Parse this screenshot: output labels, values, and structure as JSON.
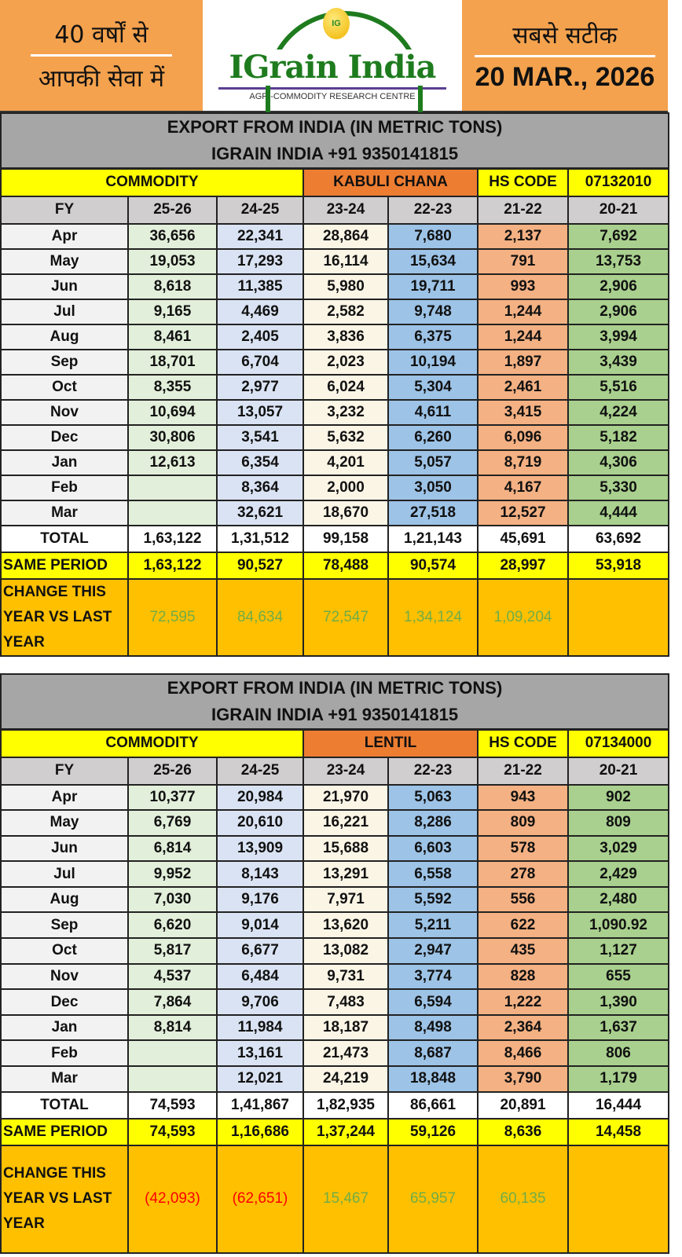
{
  "header": {
    "left_line1": "40 वर्षों से",
    "left_line2": "आपकी सेवा में",
    "logo_text": "IGrain India",
    "logo_coin": "IG",
    "tagline": "AGRI-COMMODITY RESEARCH CENTRE",
    "right_line1": "सबसे सटीक",
    "date": "20 MAR., 2026"
  },
  "colors": {
    "yellow": "#ffff00",
    "orange": "#ed7d31",
    "amber": "#ffc000",
    "positive": "#70ad47",
    "negative": "#ff0000"
  },
  "tables": [
    {
      "title1": "EXPORT FROM INDIA (IN METRIC TONS)",
      "title2": "IGRAIN INDIA +91 9350141815",
      "commodity_label": "COMMODITY",
      "commodity": "KABULI CHANA",
      "hs_label": "HS CODE",
      "hs_code": "07132010",
      "fy_label": "FY",
      "years": [
        "25-26",
        "24-25",
        "23-24",
        "22-23",
        "21-22",
        "20-21"
      ],
      "rows": [
        {
          "month": "Apr",
          "values": [
            "36,656",
            "22,341",
            "28,864",
            "7,680",
            "2,137",
            "7,692"
          ]
        },
        {
          "month": "May",
          "values": [
            "19,053",
            "17,293",
            "16,114",
            "15,634",
            "791",
            "13,753"
          ]
        },
        {
          "month": "Jun",
          "values": [
            "8,618",
            "11,385",
            "5,980",
            "19,711",
            "993",
            "2,906"
          ]
        },
        {
          "month": "Jul",
          "values": [
            "9,165",
            "4,469",
            "2,582",
            "9,748",
            "1,244",
            "2,906"
          ]
        },
        {
          "month": "Aug",
          "values": [
            "8,461",
            "2,405",
            "3,836",
            "6,375",
            "1,244",
            "3,994"
          ]
        },
        {
          "month": "Sep",
          "values": [
            "18,701",
            "6,704",
            "2,023",
            "10,194",
            "1,897",
            "3,439"
          ]
        },
        {
          "month": "Oct",
          "values": [
            "8,355",
            "2,977",
            "6,024",
            "5,304",
            "2,461",
            "5,516"
          ]
        },
        {
          "month": "Nov",
          "values": [
            "10,694",
            "13,057",
            "3,232",
            "4,611",
            "3,415",
            "4,224"
          ]
        },
        {
          "month": "Dec",
          "values": [
            "30,806",
            "3,541",
            "5,632",
            "6,260",
            "6,096",
            "5,182"
          ]
        },
        {
          "month": "Jan",
          "values": [
            "12,613",
            "6,354",
            "4,201",
            "5,057",
            "8,719",
            "4,306"
          ]
        },
        {
          "month": "Feb",
          "values": [
            "",
            "8,364",
            "2,000",
            "3,050",
            "4,167",
            "5,330"
          ]
        },
        {
          "month": "Mar",
          "values": [
            "",
            "32,621",
            "18,670",
            "27,518",
            "12,527",
            "4,444"
          ]
        }
      ],
      "total_label": "TOTAL",
      "total": [
        "1,63,122",
        "1,31,512",
        "99,158",
        "1,21,143",
        "45,691",
        "63,692"
      ],
      "same_label": "SAME PERIOD",
      "same": [
        "1,63,122",
        "90,527",
        "78,488",
        "90,574",
        "28,997",
        "53,918"
      ],
      "change_label_1": "CHANGE THIS",
      "change_label_2": "YEAR VS LAST",
      "change_label_3": "YEAR",
      "change": [
        "72,595",
        "84,634",
        "72,547",
        "1,34,124",
        "1,09,204",
        ""
      ],
      "change_sign": [
        "pos",
        "pos",
        "pos",
        "pos",
        "pos",
        ""
      ]
    },
    {
      "title1": "EXPORT FROM INDIA (IN METRIC TONS)",
      "title2": "IGRAIN INDIA +91 9350141815",
      "commodity_label": "COMMODITY",
      "commodity": "LENTIL",
      "hs_label": "HS CODE",
      "hs_code": "07134000",
      "fy_label": "FY",
      "years": [
        "25-26",
        "24-25",
        "23-24",
        "22-23",
        "21-22",
        "20-21"
      ],
      "rows": [
        {
          "month": "Apr",
          "values": [
            "10,377",
            "20,984",
            "21,970",
            "5,063",
            "943",
            "902"
          ]
        },
        {
          "month": "May",
          "values": [
            "6,769",
            "20,610",
            "16,221",
            "8,286",
            "809",
            "809"
          ]
        },
        {
          "month": "Jun",
          "values": [
            "6,814",
            "13,909",
            "15,688",
            "6,603",
            "578",
            "3,029"
          ]
        },
        {
          "month": "Jul",
          "values": [
            "9,952",
            "8,143",
            "13,291",
            "6,558",
            "278",
            "2,429"
          ]
        },
        {
          "month": "Aug",
          "values": [
            "7,030",
            "9,176",
            "7,971",
            "5,592",
            "556",
            "2,480"
          ]
        },
        {
          "month": "Sep",
          "values": [
            "6,620",
            "9,014",
            "13,620",
            "5,211",
            "622",
            "1,090.92"
          ]
        },
        {
          "month": "Oct",
          "values": [
            "5,817",
            "6,677",
            "13,082",
            "2,947",
            "435",
            "1,127"
          ]
        },
        {
          "month": "Nov",
          "values": [
            "4,537",
            "6,484",
            "9,731",
            "3,774",
            "828",
            "655"
          ]
        },
        {
          "month": "Dec",
          "values": [
            "7,864",
            "9,706",
            "7,483",
            "6,594",
            "1,222",
            "1,390"
          ]
        },
        {
          "month": "Jan",
          "values": [
            "8,814",
            "11,984",
            "18,187",
            "8,498",
            "2,364",
            "1,637"
          ]
        },
        {
          "month": "Feb",
          "values": [
            "",
            "13,161",
            "21,473",
            "8,687",
            "8,466",
            "806"
          ]
        },
        {
          "month": "Mar",
          "values": [
            "",
            "12,021",
            "24,219",
            "18,848",
            "3,790",
            "1,179"
          ]
        }
      ],
      "total_label": "TOTAL",
      "total": [
        "74,593",
        "1,41,867",
        "1,82,935",
        "86,661",
        "20,891",
        "16,444"
      ],
      "same_label": "SAME PERIOD",
      "same": [
        "74,593",
        "1,16,686",
        "1,37,244",
        "59,126",
        "8,636",
        "14,458"
      ],
      "change_label_1": "CHANGE THIS",
      "change_label_2": "YEAR VS LAST",
      "change_label_3": "YEAR",
      "change": [
        "(42,093)",
        "(62,651)",
        "15,467",
        "65,957",
        "60,135",
        ""
      ],
      "change_sign": [
        "neg",
        "neg",
        "pos",
        "pos",
        "pos",
        ""
      ]
    }
  ]
}
